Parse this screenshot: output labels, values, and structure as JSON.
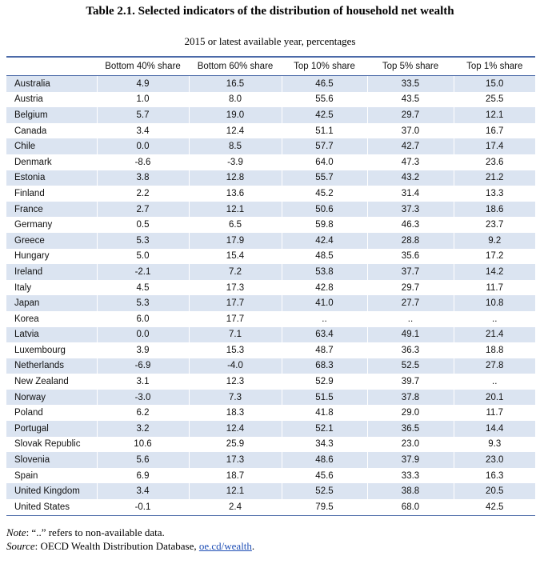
{
  "title": "Table 2.1. Selected indicators of the distribution of household net wealth",
  "subtitle": "2015 or latest available year, percentages",
  "columns": [
    "",
    "Bottom 40% share",
    "Bottom 60% share",
    "Top 10% share",
    "Top 5% share",
    "Top 1% share"
  ],
  "rows": [
    [
      "Australia",
      "4.9",
      "16.5",
      "46.5",
      "33.5",
      "15.0"
    ],
    [
      "Austria",
      "1.0",
      "8.0",
      "55.6",
      "43.5",
      "25.5"
    ],
    [
      "Belgium",
      "5.7",
      "19.0",
      "42.5",
      "29.7",
      "12.1"
    ],
    [
      "Canada",
      "3.4",
      "12.4",
      "51.1",
      "37.0",
      "16.7"
    ],
    [
      "Chile",
      "0.0",
      "8.5",
      "57.7",
      "42.7",
      "17.4"
    ],
    [
      "Denmark",
      "-8.6",
      "-3.9",
      "64.0",
      "47.3",
      "23.6"
    ],
    [
      "Estonia",
      "3.8",
      "12.8",
      "55.7",
      "43.2",
      "21.2"
    ],
    [
      "Finland",
      "2.2",
      "13.6",
      "45.2",
      "31.4",
      "13.3"
    ],
    [
      "France",
      "2.7",
      "12.1",
      "50.6",
      "37.3",
      "18.6"
    ],
    [
      "Germany",
      "0.5",
      "6.5",
      "59.8",
      "46.3",
      "23.7"
    ],
    [
      "Greece",
      "5.3",
      "17.9",
      "42.4",
      "28.8",
      "9.2"
    ],
    [
      "Hungary",
      "5.0",
      "15.4",
      "48.5",
      "35.6",
      "17.2"
    ],
    [
      "Ireland",
      "-2.1",
      "7.2",
      "53.8",
      "37.7",
      "14.2"
    ],
    [
      "Italy",
      "4.5",
      "17.3",
      "42.8",
      "29.7",
      "11.7"
    ],
    [
      "Japan",
      "5.3",
      "17.7",
      "41.0",
      "27.7",
      "10.8"
    ],
    [
      "Korea",
      "6.0",
      "17.7",
      "..",
      "..",
      ".."
    ],
    [
      "Latvia",
      "0.0",
      "7.1",
      "63.4",
      "49.1",
      "21.4"
    ],
    [
      "Luxembourg",
      "3.9",
      "15.3",
      "48.7",
      "36.3",
      "18.8"
    ],
    [
      "Netherlands",
      "-6.9",
      "-4.0",
      "68.3",
      "52.5",
      "27.8"
    ],
    [
      "New Zealand",
      "3.1",
      "12.3",
      "52.9",
      "39.7",
      ".."
    ],
    [
      "Norway",
      "-3.0",
      "7.3",
      "51.5",
      "37.8",
      "20.1"
    ],
    [
      "Poland",
      "6.2",
      "18.3",
      "41.8",
      "29.0",
      "11.7"
    ],
    [
      "Portugal",
      "3.2",
      "12.4",
      "52.1",
      "36.5",
      "14.4"
    ],
    [
      "Slovak Republic",
      "10.6",
      "25.9",
      "34.3",
      "23.0",
      "9.3"
    ],
    [
      "Slovenia",
      "5.6",
      "17.3",
      "48.6",
      "37.9",
      "23.0"
    ],
    [
      "Spain",
      "6.9",
      "18.7",
      "45.6",
      "33.3",
      "16.3"
    ],
    [
      "United Kingdom",
      "3.4",
      "12.1",
      "52.5",
      "38.8",
      "20.5"
    ],
    [
      "United States",
      "-0.1",
      "2.4",
      "79.5",
      "68.0",
      "42.5"
    ]
  ],
  "notes": {
    "note_label": "Note",
    "note_text": ": “..” refers to non-available data.",
    "source_label": "Source",
    "source_text": ": OECD Wealth Distribution Database, ",
    "source_link": "oe.cd/wealth",
    "source_end": "."
  }
}
